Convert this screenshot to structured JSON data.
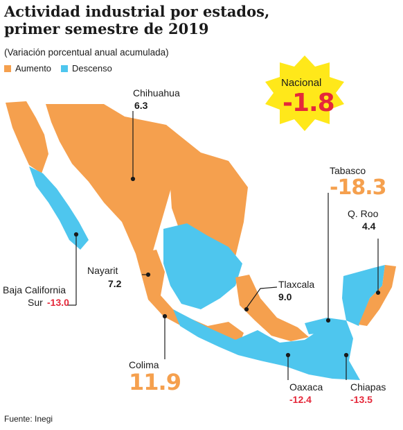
{
  "title_line1": "Actividad industrial por estados,",
  "title_line2": "primer semestre de 2019",
  "subtitle": "(Variación porcentual anual acumulada)",
  "legend": {
    "increase": {
      "label": "Aumento",
      "color": "#f5a04e"
    },
    "decrease": {
      "label": "Descenso",
      "color": "#4ec6ee"
    }
  },
  "national": {
    "label": "Nacional",
    "value": "-1.8",
    "badge_color": "#ffe81a"
  },
  "states": {
    "chihuahua": {
      "name": "Chihuahua",
      "value": "6.3"
    },
    "tabasco": {
      "name": "Tabasco",
      "value": "-18.3"
    },
    "qroo": {
      "name": "Q. Roo",
      "value": "4.4"
    },
    "nayarit": {
      "name": "Nayarit",
      "value": "7.2"
    },
    "bcs": {
      "name_line1": "Baja California",
      "name_line2": "Sur",
      "value": "-13.0"
    },
    "tlaxcala": {
      "name": "Tlaxcala",
      "value": "9.0"
    },
    "colima": {
      "name": "Colima",
      "value": "11.9"
    },
    "oaxaca": {
      "name": "Oaxaca",
      "value": "-12.4"
    },
    "chiapas": {
      "name": "Chiapas",
      "value": "-13.5"
    }
  },
  "source": "Fuente: Inegi"
}
